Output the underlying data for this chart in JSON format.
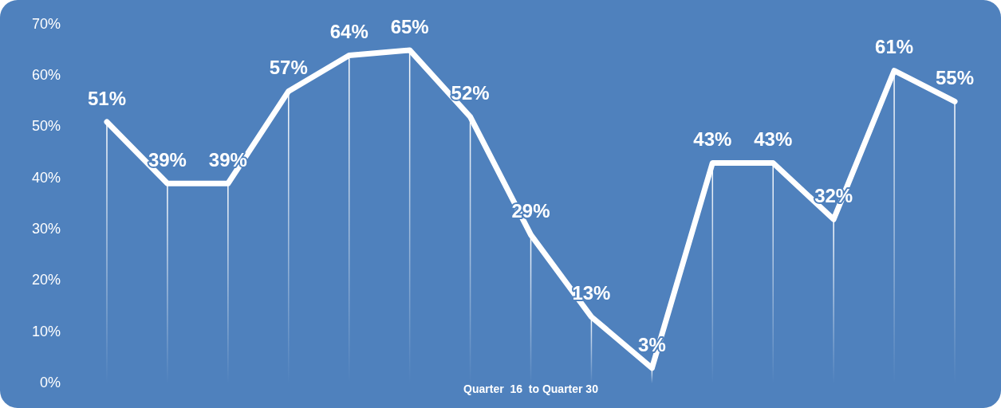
{
  "chart_data": {
    "type": "line",
    "xlabel": "Quarter  16  to Quarter 30",
    "categories": [
      null,
      null,
      null,
      null,
      null,
      null,
      null,
      null,
      null,
      null,
      null,
      null,
      null,
      null,
      null
    ],
    "series": [
      {
        "color": "#ffffff",
        "values": [
          51,
          39,
          39,
          57,
          64,
          65,
          52,
          29,
          13,
          3,
          43,
          43,
          32,
          61,
          55
        ],
        "value_labels": [
          "51%",
          "39%",
          "39%",
          "57%",
          "64%",
          "65%",
          "52%",
          "29%",
          "13%",
          "3%",
          "43%",
          "43%",
          "32%",
          "61%",
          "55%"
        ]
      }
    ],
    "ylim": [
      0,
      70
    ],
    "yticks": [
      {
        "value": 0,
        "label": "0%"
      },
      {
        "value": 10,
        "label": "10%"
      },
      {
        "value": 20,
        "label": "20%"
      },
      {
        "value": 30,
        "label": "30%"
      },
      {
        "value": 40,
        "label": "40%"
      },
      {
        "value": 50,
        "label": "50%"
      },
      {
        "value": 60,
        "label": "60%"
      },
      {
        "value": 70,
        "label": "70%"
      }
    ],
    "grid": "x",
    "legend": false,
    "marker": "none",
    "line_style": "solid",
    "tick_labels": "y"
  }
}
